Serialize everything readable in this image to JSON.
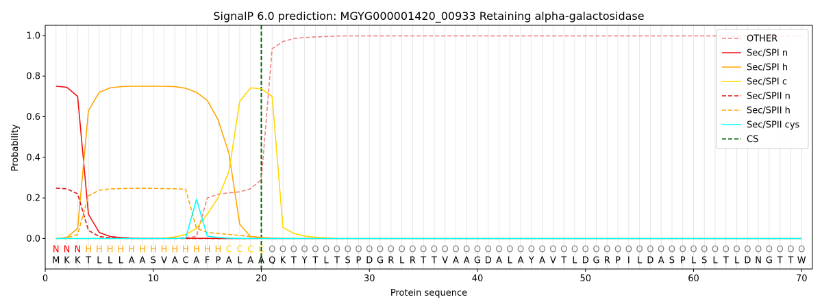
{
  "chart_data": {
    "type": "line",
    "title": "SignalP 6.0 prediction: MGYG000001420_00933 Retaining alpha-galactosidase",
    "xlabel": "Protein sequence",
    "ylabel": "Probability",
    "xlim": [
      0,
      71
    ],
    "ylim": [
      -0.15,
      1.05
    ],
    "xticks": [
      0,
      10,
      20,
      30,
      40,
      50,
      60,
      70
    ],
    "yticks": [
      0.0,
      0.2,
      0.4,
      0.6,
      0.8,
      1.0
    ],
    "ytick_labels": [
      "0.0",
      "0.2",
      "0.4",
      "0.6",
      "0.8",
      "1.0"
    ],
    "legend_position": "top-right",
    "cleavage_site": 20,
    "sequence": [
      "M",
      "K",
      "K",
      "T",
      "L",
      "L",
      "L",
      "A",
      "A",
      "S",
      "V",
      "A",
      "C",
      "A",
      "F",
      "P",
      "A",
      "L",
      "A",
      "A",
      "Q",
      "K",
      "T",
      "Y",
      "T",
      "L",
      "T",
      "S",
      "P",
      "D",
      "G",
      "R",
      "L",
      "R",
      "T",
      "T",
      "V",
      "A",
      "A",
      "G",
      "D",
      "A",
      "L",
      "A",
      "Y",
      "A",
      "V",
      "T",
      "L",
      "D",
      "G",
      "R",
      "P",
      "I",
      "L",
      "D",
      "A",
      "S",
      "P",
      "L",
      "S",
      "L",
      "T",
      "L",
      "D",
      "N",
      "G",
      "T",
      "T",
      "W"
    ],
    "labels": [
      "N",
      "N",
      "N",
      "H",
      "H",
      "H",
      "H",
      "H",
      "H",
      "H",
      "H",
      "H",
      "H",
      "H",
      "H",
      "H",
      "C",
      "C",
      "C",
      "C",
      "O",
      "O",
      "O",
      "O",
      "O",
      "O",
      "O",
      "O",
      "O",
      "O",
      "O",
      "O",
      "O",
      "O",
      "O",
      "O",
      "O",
      "O",
      "O",
      "O",
      "O",
      "O",
      "O",
      "O",
      "O",
      "O",
      "O",
      "O",
      "O",
      "O",
      "O",
      "O",
      "O",
      "O",
      "O",
      "O",
      "O",
      "O",
      "O",
      "O",
      "O",
      "O",
      "O",
      "O",
      "O",
      "O",
      "O",
      "O",
      "O",
      "O"
    ],
    "label_colors": {
      "N": "#ff0000",
      "H": "#ffa500",
      "C": "#ffd700",
      "O": "#808080"
    },
    "series": [
      {
        "name": "OTHER",
        "color": "#f08080",
        "dash": "dashed",
        "values": [
          0.0,
          0.0,
          0.0,
          0.0,
          0.0,
          0.0,
          0.0,
          0.0,
          0.0,
          0.0,
          0.0,
          0.0,
          0.005,
          0.01,
          0.2,
          0.218,
          0.225,
          0.23,
          0.245,
          0.29,
          0.935,
          0.97,
          0.985,
          0.99,
          0.993,
          0.995,
          0.997,
          0.998,
          0.998,
          0.998,
          0.998,
          0.998,
          0.998,
          0.998,
          0.998,
          0.998,
          0.998,
          0.998,
          0.998,
          0.998,
          0.998,
          0.998,
          0.998,
          0.998,
          0.998,
          0.998,
          0.998,
          0.998,
          0.998,
          0.998,
          0.998,
          0.998,
          0.998,
          0.998,
          0.998,
          0.998,
          0.998,
          0.998,
          0.998,
          0.998,
          0.998,
          0.998,
          0.997,
          0.997,
          0.997,
          0.997,
          0.997,
          0.997,
          0.997,
          0.997
        ]
      },
      {
        "name": "Sec/SPI n",
        "color": "#ee1111",
        "dash": "solid",
        "values": [
          0.75,
          0.745,
          0.7,
          0.12,
          0.03,
          0.01,
          0.005,
          0.002,
          0.001,
          0.001,
          0.001,
          0.001,
          0.001,
          0.001,
          0.001,
          0.0,
          0.0,
          0.0,
          0.0,
          0.0,
          0.0,
          0.0,
          0.0,
          0.0,
          0.0,
          0.0,
          0.0,
          0.0,
          0.0,
          0.0,
          0.0,
          0.0,
          0.0,
          0.0,
          0.0,
          0.0,
          0.0,
          0.0,
          0.0,
          0.0,
          0.0,
          0.0,
          0.0,
          0.0,
          0.0,
          0.0,
          0.0,
          0.0,
          0.0,
          0.0,
          0.0,
          0.0,
          0.0,
          0.0,
          0.0,
          0.0,
          0.0,
          0.0,
          0.0,
          0.0,
          0.0,
          0.0,
          0.0,
          0.0,
          0.0,
          0.0,
          0.0,
          0.0,
          0.0,
          0.0
        ]
      },
      {
        "name": "Sec/SPI h",
        "color": "#ffa500",
        "dash": "solid",
        "values": [
          0.0,
          0.005,
          0.05,
          0.63,
          0.72,
          0.742,
          0.748,
          0.75,
          0.75,
          0.75,
          0.75,
          0.748,
          0.74,
          0.72,
          0.68,
          0.585,
          0.42,
          0.07,
          0.01,
          0.005,
          0.002,
          0.001,
          0.0,
          0.0,
          0.0,
          0.0,
          0.0,
          0.0,
          0.0,
          0.0,
          0.0,
          0.0,
          0.0,
          0.0,
          0.0,
          0.0,
          0.0,
          0.0,
          0.0,
          0.0,
          0.0,
          0.0,
          0.0,
          0.0,
          0.0,
          0.0,
          0.0,
          0.0,
          0.0,
          0.0,
          0.0,
          0.0,
          0.0,
          0.0,
          0.0,
          0.0,
          0.0,
          0.0,
          0.0,
          0.0,
          0.0,
          0.0,
          0.0,
          0.0,
          0.0,
          0.0,
          0.0,
          0.0,
          0.0,
          0.0
        ]
      },
      {
        "name": "Sec/SPI c",
        "color": "#ffd700",
        "dash": "solid",
        "values": [
          0.0,
          0.0,
          0.0,
          0.0,
          0.0,
          0.0,
          0.0,
          0.0,
          0.0,
          0.0,
          0.002,
          0.008,
          0.02,
          0.05,
          0.12,
          0.2,
          0.33,
          0.675,
          0.742,
          0.738,
          0.7,
          0.055,
          0.025,
          0.012,
          0.006,
          0.003,
          0.001,
          0.0,
          0.0,
          0.0,
          0.0,
          0.0,
          0.0,
          0.0,
          0.0,
          0.0,
          0.0,
          0.0,
          0.0,
          0.0,
          0.0,
          0.0,
          0.0,
          0.0,
          0.0,
          0.0,
          0.0,
          0.0,
          0.0,
          0.0,
          0.0,
          0.0,
          0.0,
          0.0,
          0.0,
          0.0,
          0.0,
          0.0,
          0.0,
          0.0,
          0.0,
          0.0,
          0.0,
          0.0,
          0.0,
          0.0,
          0.0,
          0.0,
          0.0,
          0.0
        ]
      },
      {
        "name": "Sec/SPII n",
        "color": "#dd1111",
        "dash": "dashed",
        "values": [
          0.248,
          0.245,
          0.22,
          0.04,
          0.01,
          0.003,
          0.001,
          0.0,
          0.0,
          0.0,
          0.0,
          0.0,
          0.0,
          0.0,
          0.0,
          0.0,
          0.0,
          0.0,
          0.0,
          0.0,
          0.0,
          0.0,
          0.0,
          0.0,
          0.0,
          0.0,
          0.0,
          0.0,
          0.0,
          0.0,
          0.0,
          0.0,
          0.0,
          0.0,
          0.0,
          0.0,
          0.0,
          0.0,
          0.0,
          0.0,
          0.0,
          0.0,
          0.0,
          0.0,
          0.0,
          0.0,
          0.0,
          0.0,
          0.0,
          0.0,
          0.0,
          0.0,
          0.0,
          0.0,
          0.0,
          0.0,
          0.0,
          0.0,
          0.0,
          0.0,
          0.0,
          0.0,
          0.0,
          0.0,
          0.0,
          0.0,
          0.0,
          0.0,
          0.0,
          0.0
        ]
      },
      {
        "name": "Sec/SPII h",
        "color": "#ffa500",
        "dash": "dashed",
        "values": [
          0.0,
          0.003,
          0.02,
          0.21,
          0.238,
          0.244,
          0.246,
          0.247,
          0.247,
          0.247,
          0.246,
          0.245,
          0.243,
          0.05,
          0.03,
          0.025,
          0.02,
          0.015,
          0.01,
          0.006,
          0.002,
          0.0,
          0.0,
          0.0,
          0.0,
          0.0,
          0.0,
          0.0,
          0.0,
          0.0,
          0.0,
          0.0,
          0.0,
          0.0,
          0.0,
          0.0,
          0.0,
          0.0,
          0.0,
          0.0,
          0.0,
          0.0,
          0.0,
          0.0,
          0.0,
          0.0,
          0.0,
          0.0,
          0.0,
          0.0,
          0.0,
          0.0,
          0.0,
          0.0,
          0.0,
          0.0,
          0.0,
          0.0,
          0.0,
          0.0,
          0.0,
          0.0,
          0.0,
          0.0,
          0.0,
          0.0,
          0.0,
          0.0,
          0.0,
          0.0
        ]
      },
      {
        "name": "Sec/SPII cys",
        "color": "#00ffff",
        "dash": "solid",
        "values": [
          0.0,
          0.0,
          0.0,
          0.0,
          0.0,
          0.0,
          0.0,
          0.0,
          0.0,
          0.0,
          0.0,
          0.0,
          0.002,
          0.193,
          0.012,
          0.005,
          0.002,
          0.001,
          0.0,
          0.0,
          0.0,
          0.0,
          0.0,
          0.0,
          0.0,
          0.0,
          0.0,
          0.0,
          0.0,
          0.0,
          0.0,
          0.0,
          0.0,
          0.0,
          0.0,
          0.0,
          0.0,
          0.0,
          0.0,
          0.0,
          0.0,
          0.0,
          0.0,
          0.0,
          0.0,
          0.0,
          0.0,
          0.0,
          0.0,
          0.0,
          0.0,
          0.0,
          0.0,
          0.0,
          0.0,
          0.0,
          0.0,
          0.0,
          0.0,
          0.0,
          0.0,
          0.0,
          0.0,
          0.0,
          0.0,
          0.0,
          0.0,
          0.0,
          0.0,
          0.0
        ]
      }
    ],
    "cs_legend": {
      "name": "CS",
      "color": "#006400",
      "dash": "dashed"
    }
  }
}
